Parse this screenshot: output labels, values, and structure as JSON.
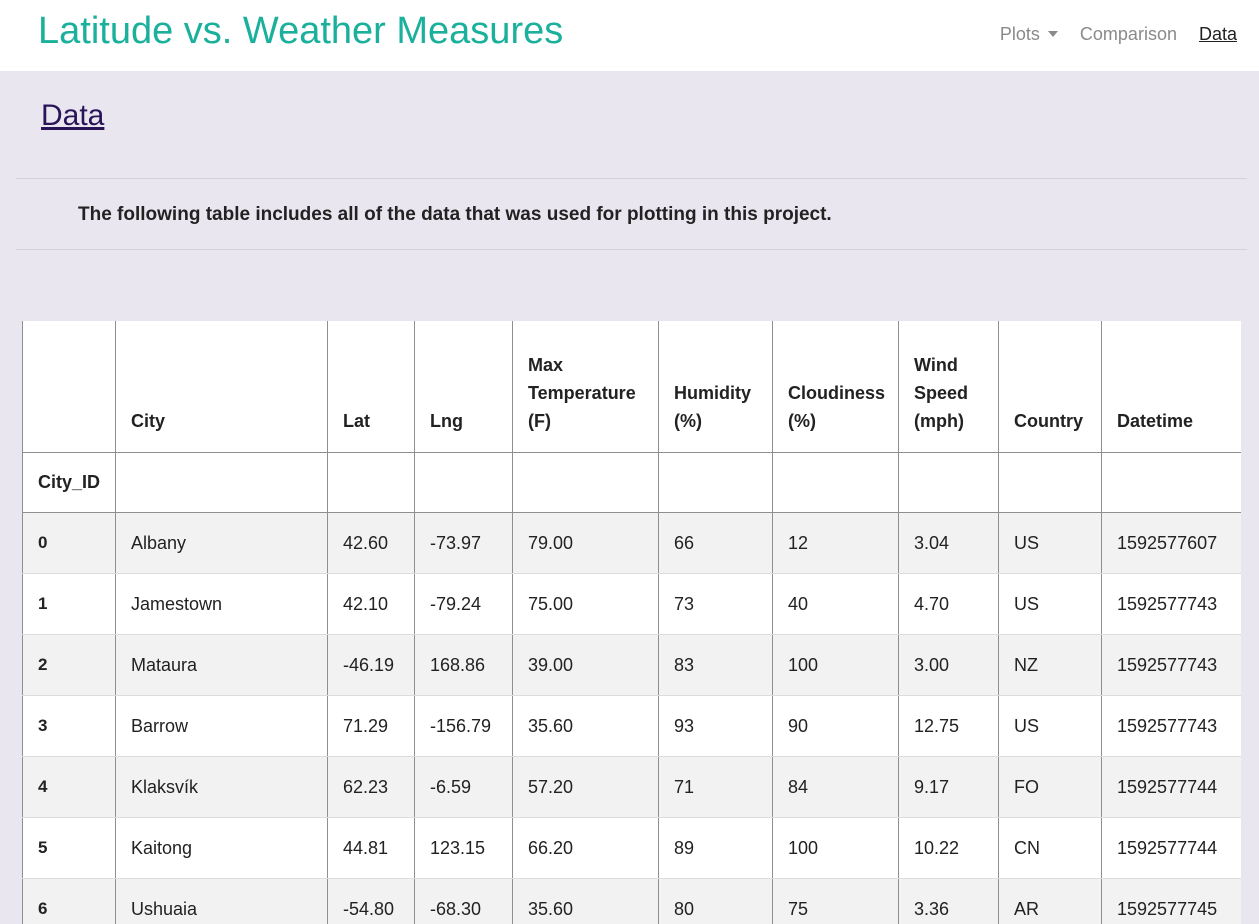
{
  "navbar": {
    "brand": "Latitude vs. Weather Measures",
    "items": [
      {
        "label": "Plots",
        "has_dropdown": true,
        "active": false
      },
      {
        "label": "Comparison",
        "has_dropdown": false,
        "active": false
      },
      {
        "label": "Data",
        "has_dropdown": false,
        "active": true
      }
    ]
  },
  "page": {
    "heading": "Data",
    "description": "The following table includes all of the data that was used for plotting in this project."
  },
  "table": {
    "columns": [
      "",
      "City",
      "Lat",
      "Lng",
      "Max Temperature (F)",
      "Humidity (%)",
      "Cloudiness (%)",
      "Wind Speed (mph)",
      "Country",
      "Datetime"
    ],
    "index_name": "City_ID",
    "rows": [
      [
        "0",
        "Albany",
        "42.60",
        "-73.97",
        "79.00",
        "66",
        "12",
        "3.04",
        "US",
        "1592577607"
      ],
      [
        "1",
        "Jamestown",
        "42.10",
        "-79.24",
        "75.00",
        "73",
        "40",
        "4.70",
        "US",
        "1592577743"
      ],
      [
        "2",
        "Mataura",
        "-46.19",
        "168.86",
        "39.00",
        "83",
        "100",
        "3.00",
        "NZ",
        "1592577743"
      ],
      [
        "3",
        "Barrow",
        "71.29",
        "-156.79",
        "35.60",
        "93",
        "90",
        "12.75",
        "US",
        "1592577743"
      ],
      [
        "4",
        "Klaksvík",
        "62.23",
        "-6.59",
        "57.20",
        "71",
        "84",
        "9.17",
        "FO",
        "1592577744"
      ],
      [
        "5",
        "Kaitong",
        "44.81",
        "123.15",
        "66.20",
        "89",
        "100",
        "10.22",
        "CN",
        "1592577744"
      ],
      [
        "6",
        "Ushuaia",
        "-54.80",
        "-68.30",
        "35.60",
        "80",
        "75",
        "3.36",
        "AR",
        "1592577745"
      ]
    ]
  },
  "colors": {
    "brand": "#1bb09c",
    "page_background": "#e9e6f0",
    "heading": "#2a1458",
    "row_striped": "#f2f2f2"
  }
}
